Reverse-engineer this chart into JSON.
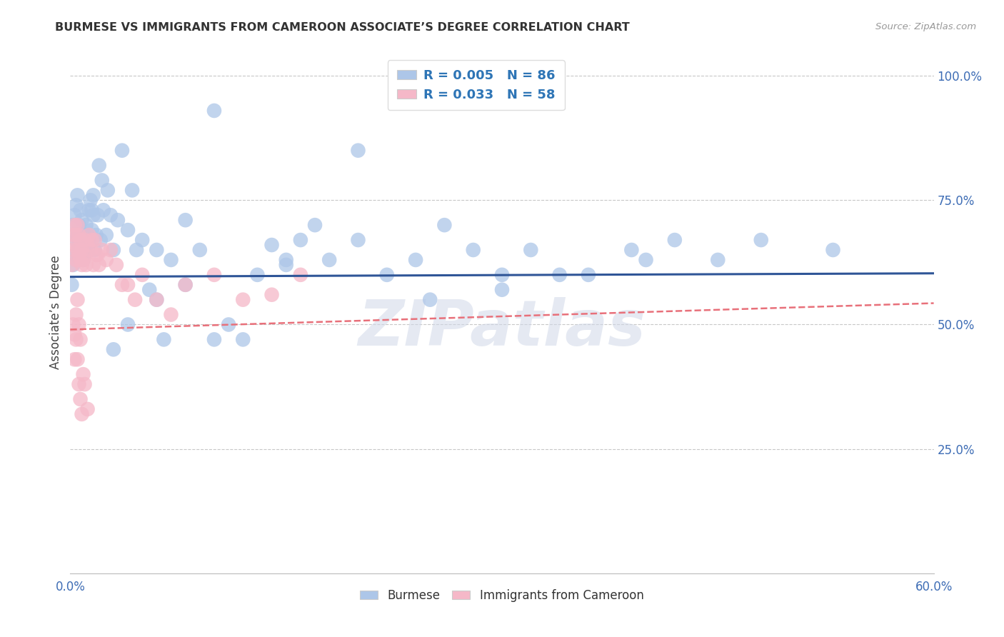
{
  "title": "BURMESE VS IMMIGRANTS FROM CAMEROON ASSOCIATE’S DEGREE CORRELATION CHART",
  "source": "Source: ZipAtlas.com",
  "ylabel": "Associate’s Degree",
  "right_yticks": [
    "100.0%",
    "75.0%",
    "50.0%",
    "25.0%"
  ],
  "right_ytick_vals": [
    1.0,
    0.75,
    0.5,
    0.25
  ],
  "legend_blue_r": "R = 0.005",
  "legend_blue_n": "N = 86",
  "legend_pink_r": "R = 0.033",
  "legend_pink_n": "N = 58",
  "blue_color": "#adc6e8",
  "pink_color": "#f5b8c8",
  "blue_line_color": "#2f5597",
  "pink_line_color": "#e8707a",
  "r_value_color": "#2e75b6",
  "blue_scatter_x": [
    0.001,
    0.002,
    0.002,
    0.003,
    0.003,
    0.004,
    0.004,
    0.005,
    0.005,
    0.006,
    0.006,
    0.007,
    0.007,
    0.008,
    0.008,
    0.009,
    0.009,
    0.01,
    0.01,
    0.011,
    0.011,
    0.012,
    0.012,
    0.013,
    0.013,
    0.014,
    0.015,
    0.015,
    0.016,
    0.016,
    0.017,
    0.018,
    0.019,
    0.02,
    0.021,
    0.022,
    0.023,
    0.025,
    0.026,
    0.028,
    0.03,
    0.033,
    0.036,
    0.04,
    0.043,
    0.046,
    0.05,
    0.055,
    0.06,
    0.065,
    0.07,
    0.08,
    0.09,
    0.1,
    0.11,
    0.12,
    0.13,
    0.14,
    0.15,
    0.16,
    0.17,
    0.18,
    0.2,
    0.22,
    0.24,
    0.26,
    0.28,
    0.3,
    0.32,
    0.34,
    0.36,
    0.39,
    0.42,
    0.45,
    0.48,
    0.53,
    0.03,
    0.04,
    0.06,
    0.08,
    0.1,
    0.15,
    0.2,
    0.25,
    0.3,
    0.4
  ],
  "blue_scatter_y": [
    0.58,
    0.62,
    0.7,
    0.64,
    0.72,
    0.67,
    0.74,
    0.68,
    0.76,
    0.66,
    0.7,
    0.68,
    0.73,
    0.65,
    0.71,
    0.67,
    0.63,
    0.68,
    0.64,
    0.66,
    0.7,
    0.65,
    0.68,
    0.73,
    0.67,
    0.75,
    0.69,
    0.73,
    0.72,
    0.76,
    0.65,
    0.68,
    0.72,
    0.82,
    0.67,
    0.79,
    0.73,
    0.68,
    0.77,
    0.72,
    0.65,
    0.71,
    0.85,
    0.69,
    0.77,
    0.65,
    0.67,
    0.57,
    0.65,
    0.47,
    0.63,
    0.71,
    0.65,
    0.47,
    0.5,
    0.47,
    0.6,
    0.66,
    0.63,
    0.67,
    0.7,
    0.63,
    0.67,
    0.6,
    0.63,
    0.7,
    0.65,
    0.6,
    0.65,
    0.6,
    0.6,
    0.65,
    0.67,
    0.63,
    0.67,
    0.65,
    0.45,
    0.5,
    0.55,
    0.58,
    0.93,
    0.62,
    0.85,
    0.55,
    0.57,
    0.63
  ],
  "pink_scatter_x": [
    0.001,
    0.002,
    0.002,
    0.003,
    0.003,
    0.004,
    0.004,
    0.005,
    0.005,
    0.006,
    0.006,
    0.007,
    0.007,
    0.008,
    0.008,
    0.009,
    0.01,
    0.01,
    0.011,
    0.012,
    0.013,
    0.014,
    0.015,
    0.016,
    0.017,
    0.018,
    0.019,
    0.02,
    0.022,
    0.025,
    0.028,
    0.032,
    0.036,
    0.04,
    0.045,
    0.05,
    0.06,
    0.07,
    0.08,
    0.1,
    0.12,
    0.14,
    0.16,
    0.002,
    0.003,
    0.004,
    0.005,
    0.006,
    0.007,
    0.003,
    0.004,
    0.005,
    0.006,
    0.007,
    0.008,
    0.009,
    0.01,
    0.012
  ],
  "pink_scatter_y": [
    0.62,
    0.65,
    0.68,
    0.66,
    0.7,
    0.63,
    0.68,
    0.65,
    0.7,
    0.64,
    0.68,
    0.63,
    0.67,
    0.65,
    0.62,
    0.63,
    0.67,
    0.64,
    0.62,
    0.66,
    0.68,
    0.65,
    0.67,
    0.62,
    0.67,
    0.64,
    0.64,
    0.62,
    0.65,
    0.63,
    0.65,
    0.62,
    0.58,
    0.58,
    0.55,
    0.6,
    0.55,
    0.52,
    0.58,
    0.6,
    0.55,
    0.56,
    0.6,
    0.5,
    0.48,
    0.52,
    0.55,
    0.5,
    0.47,
    0.43,
    0.47,
    0.43,
    0.38,
    0.35,
    0.32,
    0.4,
    0.38,
    0.33
  ],
  "blue_trend_x": [
    0.0,
    0.6
  ],
  "blue_trend_y": [
    0.596,
    0.603
  ],
  "pink_trend_x": [
    0.0,
    0.6
  ],
  "pink_trend_y": [
    0.49,
    0.543
  ],
  "xlim": [
    0.0,
    0.6
  ],
  "ylim": [
    0.0,
    1.05
  ],
  "watermark": "ZIPatlas",
  "background_color": "#ffffff",
  "grid_color": "#c8c8c8"
}
